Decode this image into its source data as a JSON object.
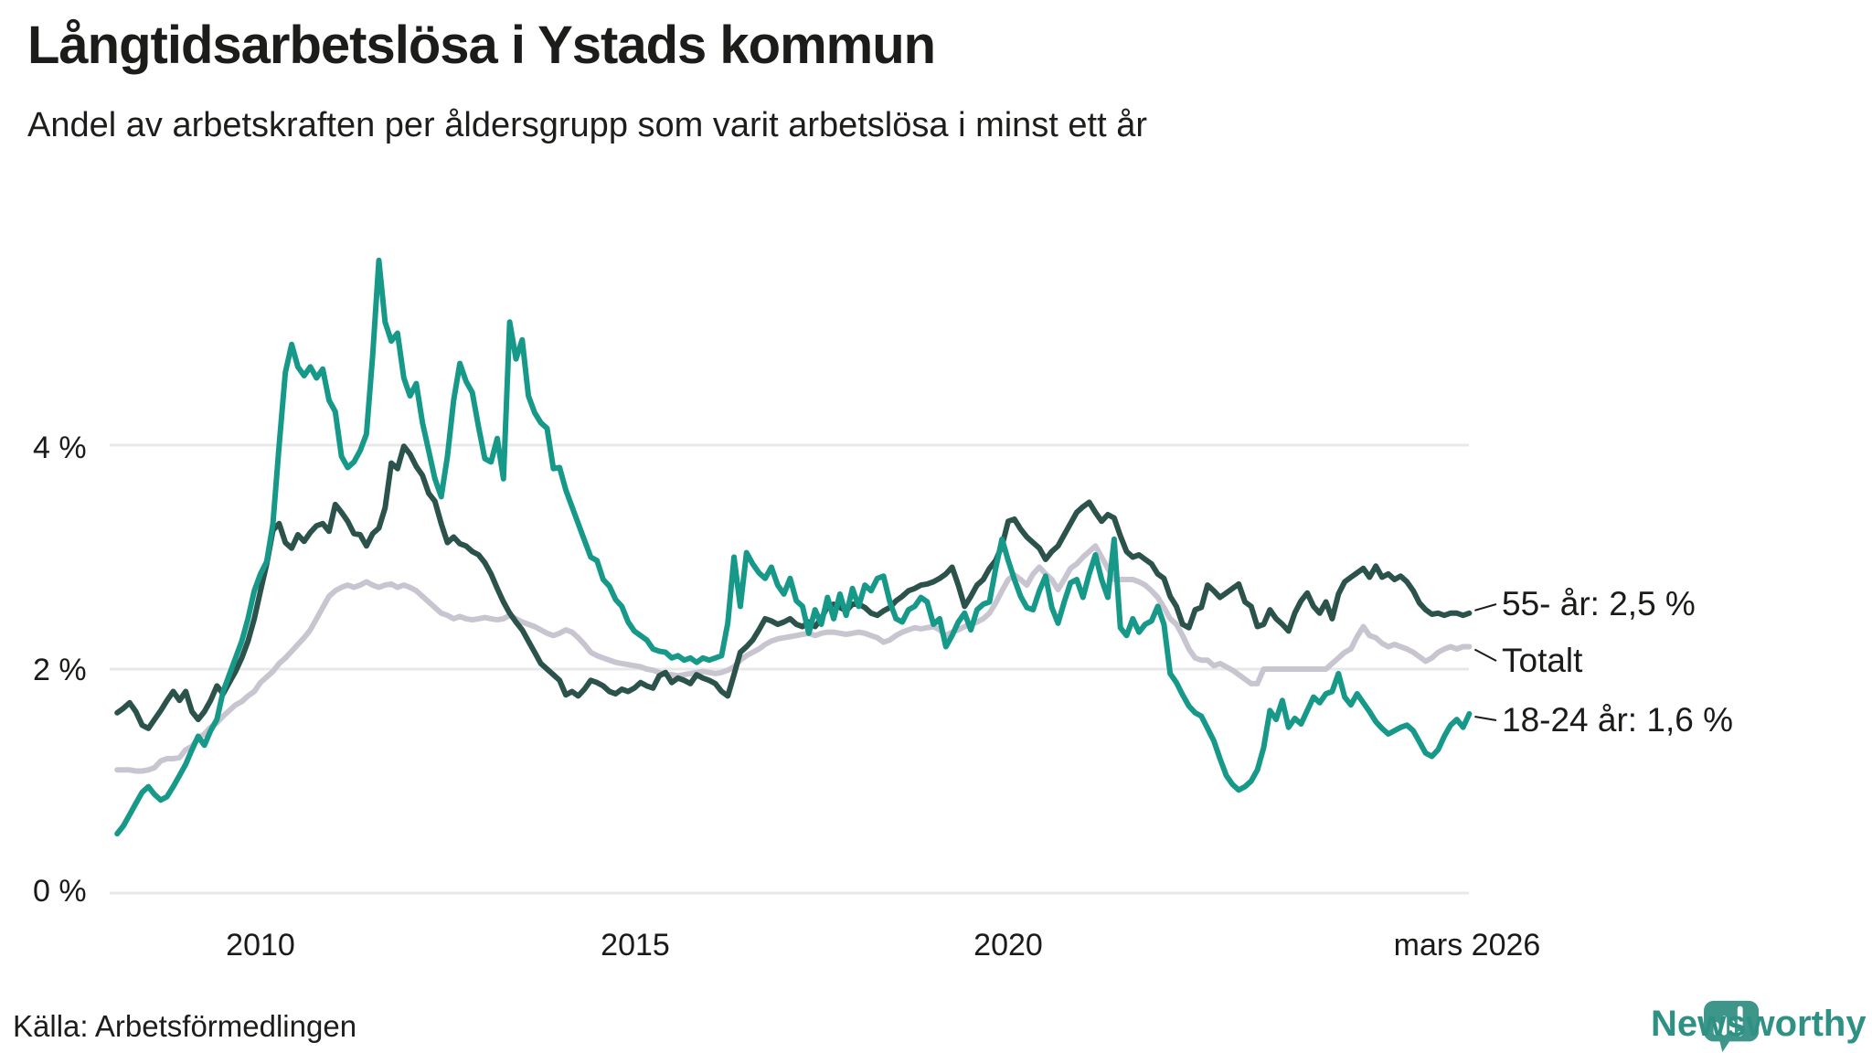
{
  "title": "Långtidsarbetslösa i Ystads kommun",
  "subtitle": "Andel av arbetskraften per åldersgrupp som varit arbetslösa i minst ett år",
  "source": "Källa: Arbetsförmedlingen",
  "branding": {
    "name": "Newsworthy",
    "icon": "newsworthy-speech-bubble-bar-chart-icon",
    "color": "#2f9184"
  },
  "colors": {
    "background": "#ffffff",
    "text": "#1c1c1a",
    "gridline": "#e8e8eb",
    "series_55": "#2b534c",
    "series_total": "#c8c5d0",
    "series_1824": "#17998a",
    "connector": "#1b1b19"
  },
  "chart_data": {
    "type": "line",
    "title": "Långtidsarbetslösa i Ystads kommun",
    "subtitle": "Andel av arbetskraften per åldersgrupp som varit arbetslösa i minst ett år",
    "unit": "% av arbetskraften",
    "x_ticks": [
      "2010",
      "2015",
      "2020",
      "mars 2026"
    ],
    "y_ticks": [
      "4 %",
      "2 %",
      "0 %"
    ],
    "ylim": [
      0,
      5.8
    ],
    "grid": "horizontal",
    "legend_position": "right-edge-labels",
    "x_start_decimal_year": 2008.083,
    "x_end_decimal_year": 2026.167,
    "x_step_months": 1,
    "series": [
      {
        "name": "55- år",
        "end_label": "55- år: 2,5 %",
        "end_value": 2.5,
        "color": "#2b534c",
        "values": [
          1.61,
          1.65,
          1.7,
          1.62,
          1.5,
          1.47,
          1.55,
          1.63,
          1.72,
          1.8,
          1.72,
          1.8,
          1.62,
          1.55,
          1.62,
          1.72,
          1.85,
          1.78,
          1.88,
          1.98,
          2.1,
          2.25,
          2.45,
          2.7,
          2.94,
          3.24,
          3.3,
          3.13,
          3.08,
          3.2,
          3.14,
          3.22,
          3.28,
          3.3,
          3.23,
          3.47,
          3.4,
          3.32,
          3.21,
          3.2,
          3.1,
          3.21,
          3.26,
          3.44,
          3.84,
          3.79,
          3.99,
          3.92,
          3.81,
          3.73,
          3.57,
          3.5,
          3.3,
          3.13,
          3.18,
          3.12,
          3.1,
          3.05,
          3.02,
          2.95,
          2.85,
          2.72,
          2.6,
          2.5,
          2.42,
          2.35,
          2.25,
          2.15,
          2.05,
          2.0,
          1.95,
          1.9,
          1.77,
          1.8,
          1.76,
          1.82,
          1.9,
          1.88,
          1.85,
          1.8,
          1.78,
          1.82,
          1.8,
          1.83,
          1.88,
          1.85,
          1.83,
          1.94,
          1.97,
          1.88,
          1.92,
          1.9,
          1.87,
          1.95,
          1.92,
          1.9,
          1.87,
          1.8,
          1.76,
          1.95,
          2.15,
          2.2,
          2.26,
          2.35,
          2.45,
          2.43,
          2.4,
          2.42,
          2.45,
          2.4,
          2.38,
          2.42,
          2.38,
          2.45,
          2.56,
          2.58,
          2.55,
          2.52,
          2.58,
          2.58,
          2.55,
          2.5,
          2.48,
          2.52,
          2.55,
          2.61,
          2.65,
          2.7,
          2.72,
          2.75,
          2.76,
          2.78,
          2.81,
          2.85,
          2.91,
          2.75,
          2.56,
          2.65,
          2.75,
          2.8,
          2.9,
          2.97,
          3.1,
          3.32,
          3.34,
          3.25,
          3.18,
          3.13,
          3.08,
          2.98,
          3.05,
          3.1,
          3.2,
          3.3,
          3.4,
          3.45,
          3.49,
          3.4,
          3.32,
          3.38,
          3.35,
          3.19,
          3.05,
          3.0,
          3.02,
          2.98,
          2.94,
          2.85,
          2.81,
          2.65,
          2.56,
          2.4,
          2.37,
          2.53,
          2.55,
          2.75,
          2.7,
          2.64,
          2.68,
          2.72,
          2.76,
          2.6,
          2.56,
          2.38,
          2.4,
          2.53,
          2.45,
          2.4,
          2.34,
          2.5,
          2.61,
          2.68,
          2.56,
          2.5,
          2.6,
          2.45,
          2.67,
          2.78,
          2.82,
          2.86,
          2.9,
          2.82,
          2.92,
          2.82,
          2.85,
          2.8,
          2.83,
          2.78,
          2.7,
          2.59,
          2.53,
          2.49,
          2.5,
          2.48,
          2.5,
          2.5,
          2.48,
          2.5
        ]
      },
      {
        "name": "Totalt",
        "end_label": "Totalt",
        "end_value": 2.2,
        "color": "#c8c5d0",
        "values": [
          1.1,
          1.1,
          1.1,
          1.09,
          1.09,
          1.1,
          1.12,
          1.18,
          1.2,
          1.2,
          1.21,
          1.28,
          1.31,
          1.38,
          1.42,
          1.48,
          1.52,
          1.58,
          1.63,
          1.68,
          1.71,
          1.76,
          1.8,
          1.88,
          1.93,
          1.98,
          2.05,
          2.1,
          2.16,
          2.22,
          2.28,
          2.35,
          2.45,
          2.55,
          2.65,
          2.7,
          2.73,
          2.75,
          2.73,
          2.75,
          2.78,
          2.75,
          2.73,
          2.75,
          2.76,
          2.73,
          2.75,
          2.73,
          2.7,
          2.65,
          2.6,
          2.55,
          2.5,
          2.48,
          2.45,
          2.47,
          2.45,
          2.44,
          2.45,
          2.46,
          2.45,
          2.44,
          2.45,
          2.48,
          2.45,
          2.42,
          2.4,
          2.38,
          2.35,
          2.32,
          2.3,
          2.32,
          2.35,
          2.33,
          2.28,
          2.22,
          2.15,
          2.12,
          2.1,
          2.08,
          2.06,
          2.05,
          2.04,
          2.03,
          2.02,
          2.0,
          1.99,
          1.97,
          1.95,
          1.95,
          1.94,
          1.95,
          1.96,
          1.97,
          1.98,
          1.97,
          1.96,
          1.97,
          1.99,
          2.02,
          2.08,
          2.12,
          2.15,
          2.18,
          2.22,
          2.25,
          2.27,
          2.28,
          2.29,
          2.3,
          2.31,
          2.32,
          2.3,
          2.32,
          2.33,
          2.33,
          2.32,
          2.31,
          2.32,
          2.33,
          2.32,
          2.3,
          2.28,
          2.24,
          2.26,
          2.3,
          2.33,
          2.35,
          2.37,
          2.36,
          2.37,
          2.38,
          2.35,
          2.3,
          2.33,
          2.35,
          2.38,
          2.4,
          2.42,
          2.45,
          2.5,
          2.59,
          2.7,
          2.8,
          2.84,
          2.8,
          2.75,
          2.85,
          2.91,
          2.85,
          2.8,
          2.71,
          2.8,
          2.9,
          2.94,
          3.0,
          3.05,
          3.1,
          3.0,
          2.9,
          2.8,
          2.8,
          2.8,
          2.8,
          2.78,
          2.75,
          2.7,
          2.64,
          2.55,
          2.45,
          2.4,
          2.3,
          2.18,
          2.1,
          2.08,
          2.08,
          2.03,
          2.05,
          2.02,
          1.99,
          1.95,
          1.91,
          1.87,
          1.87,
          2.0,
          2.0,
          2.0,
          2.0,
          2.0,
          2.0,
          2.0,
          2.0,
          2.0,
          2.0,
          2.0,
          2.05,
          2.1,
          2.15,
          2.18,
          2.29,
          2.38,
          2.3,
          2.28,
          2.23,
          2.2,
          2.22,
          2.2,
          2.18,
          2.15,
          2.11,
          2.07,
          2.1,
          2.15,
          2.18,
          2.2,
          2.18,
          2.2,
          2.2
        ]
      },
      {
        "name": "18-24 år",
        "end_label": "18-24 år: 1,6 %",
        "end_value": 1.6,
        "color": "#17998a",
        "values": [
          0.53,
          0.6,
          0.7,
          0.8,
          0.9,
          0.95,
          0.88,
          0.83,
          0.86,
          0.95,
          1.05,
          1.15,
          1.28,
          1.4,
          1.32,
          1.45,
          1.55,
          1.8,
          1.95,
          2.1,
          2.25,
          2.45,
          2.7,
          2.85,
          2.96,
          3.3,
          4.0,
          4.65,
          4.9,
          4.7,
          4.62,
          4.7,
          4.6,
          4.68,
          4.4,
          4.3,
          3.9,
          3.8,
          3.85,
          3.95,
          4.1,
          4.8,
          5.65,
          5.1,
          4.93,
          5.0,
          4.6,
          4.44,
          4.55,
          4.2,
          3.95,
          3.7,
          3.54,
          3.9,
          4.4,
          4.73,
          4.57,
          4.47,
          4.16,
          3.88,
          3.85,
          4.06,
          3.7,
          5.1,
          4.77,
          4.94,
          4.44,
          4.29,
          4.2,
          4.15,
          3.79,
          3.8,
          3.6,
          3.45,
          3.3,
          3.15,
          3.0,
          2.97,
          2.8,
          2.74,
          2.62,
          2.56,
          2.42,
          2.34,
          2.3,
          2.26,
          2.18,
          2.16,
          2.15,
          2.1,
          2.12,
          2.08,
          2.1,
          2.06,
          2.1,
          2.08,
          2.1,
          2.12,
          2.41,
          3.0,
          2.56,
          3.04,
          2.94,
          2.86,
          2.81,
          2.91,
          2.75,
          2.67,
          2.81,
          2.61,
          2.56,
          2.32,
          2.53,
          2.4,
          2.64,
          2.45,
          2.67,
          2.48,
          2.72,
          2.56,
          2.75,
          2.7,
          2.81,
          2.83,
          2.6,
          2.45,
          2.42,
          2.53,
          2.56,
          2.64,
          2.6,
          2.4,
          2.45,
          2.2,
          2.3,
          2.42,
          2.5,
          2.35,
          2.53,
          2.58,
          2.6,
          2.9,
          3.16,
          2.97,
          2.8,
          2.65,
          2.55,
          2.53,
          2.7,
          2.83,
          2.55,
          2.41,
          2.6,
          2.77,
          2.8,
          2.64,
          2.85,
          3.02,
          2.8,
          2.64,
          3.16,
          2.37,
          2.3,
          2.45,
          2.33,
          2.4,
          2.43,
          2.56,
          2.4,
          1.96,
          1.88,
          1.77,
          1.67,
          1.61,
          1.58,
          1.47,
          1.36,
          1.2,
          1.05,
          0.97,
          0.92,
          0.95,
          1.0,
          1.1,
          1.3,
          1.63,
          1.55,
          1.72,
          1.48,
          1.56,
          1.51,
          1.63,
          1.75,
          1.7,
          1.78,
          1.8,
          1.96,
          1.75,
          1.68,
          1.78,
          1.7,
          1.62,
          1.53,
          1.47,
          1.42,
          1.45,
          1.48,
          1.5,
          1.45,
          1.35,
          1.25,
          1.22,
          1.28,
          1.4,
          1.5,
          1.55,
          1.48,
          1.6
        ]
      }
    ]
  }
}
